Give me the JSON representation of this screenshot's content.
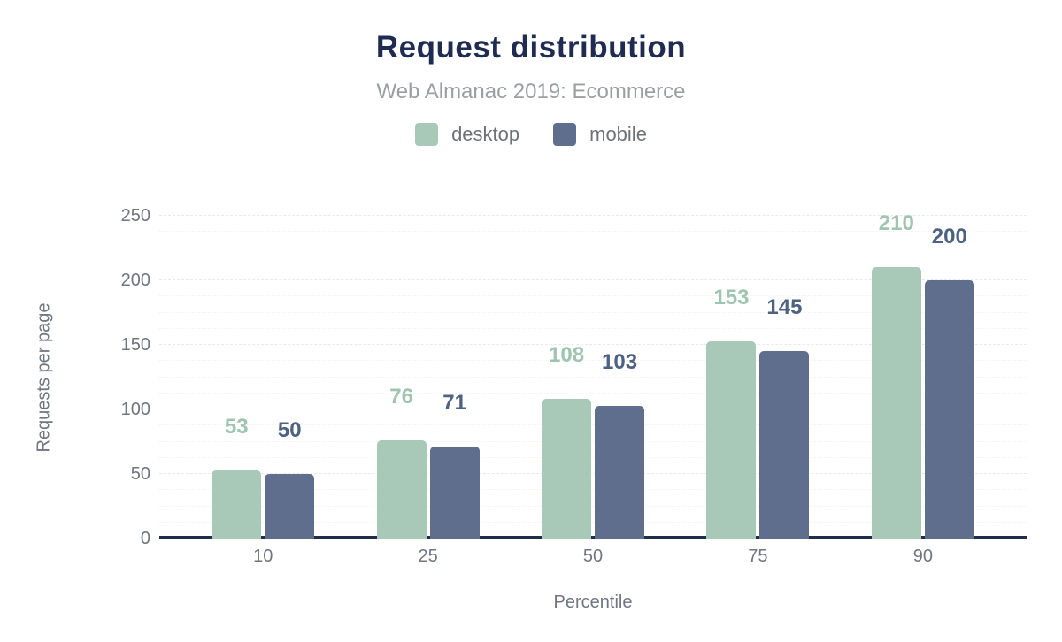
{
  "header": {
    "title": "Request distribution",
    "subtitle": "Web Almanac 2019: Ecommerce"
  },
  "colors": {
    "title": "#1f2b50",
    "subtitle": "#9b9fa3",
    "axis_text": "#6f7680",
    "axis_line": "#222c4c",
    "desktop_bar": "#a8c9b7",
    "desktop_label": "#9fc4af",
    "mobile_bar": "#5f6e8c",
    "mobile_label": "#4d6183",
    "background": "#ffffff"
  },
  "chart_data": {
    "type": "bar",
    "title": "Request distribution",
    "subtitle": "Web Almanac 2019: Ecommerce",
    "categories": [
      "10",
      "25",
      "50",
      "75",
      "90"
    ],
    "series": [
      {
        "name": "desktop",
        "values": [
          53,
          76,
          108,
          153,
          210
        ],
        "color": "#a8c9b7",
        "label_color": "#9fc4af"
      },
      {
        "name": "mobile",
        "values": [
          50,
          71,
          103,
          145,
          200
        ],
        "color": "#5f6e8c",
        "label_color": "#4d6183"
      }
    ],
    "xlabel": "Percentile",
    "ylabel": "Requests per page",
    "ylim": [
      0,
      250
    ],
    "yticks": [
      0,
      50,
      100,
      150,
      200,
      250
    ],
    "minor_grid_step": 12.5,
    "grid": true,
    "data_labels": true,
    "legend_position": "top"
  }
}
